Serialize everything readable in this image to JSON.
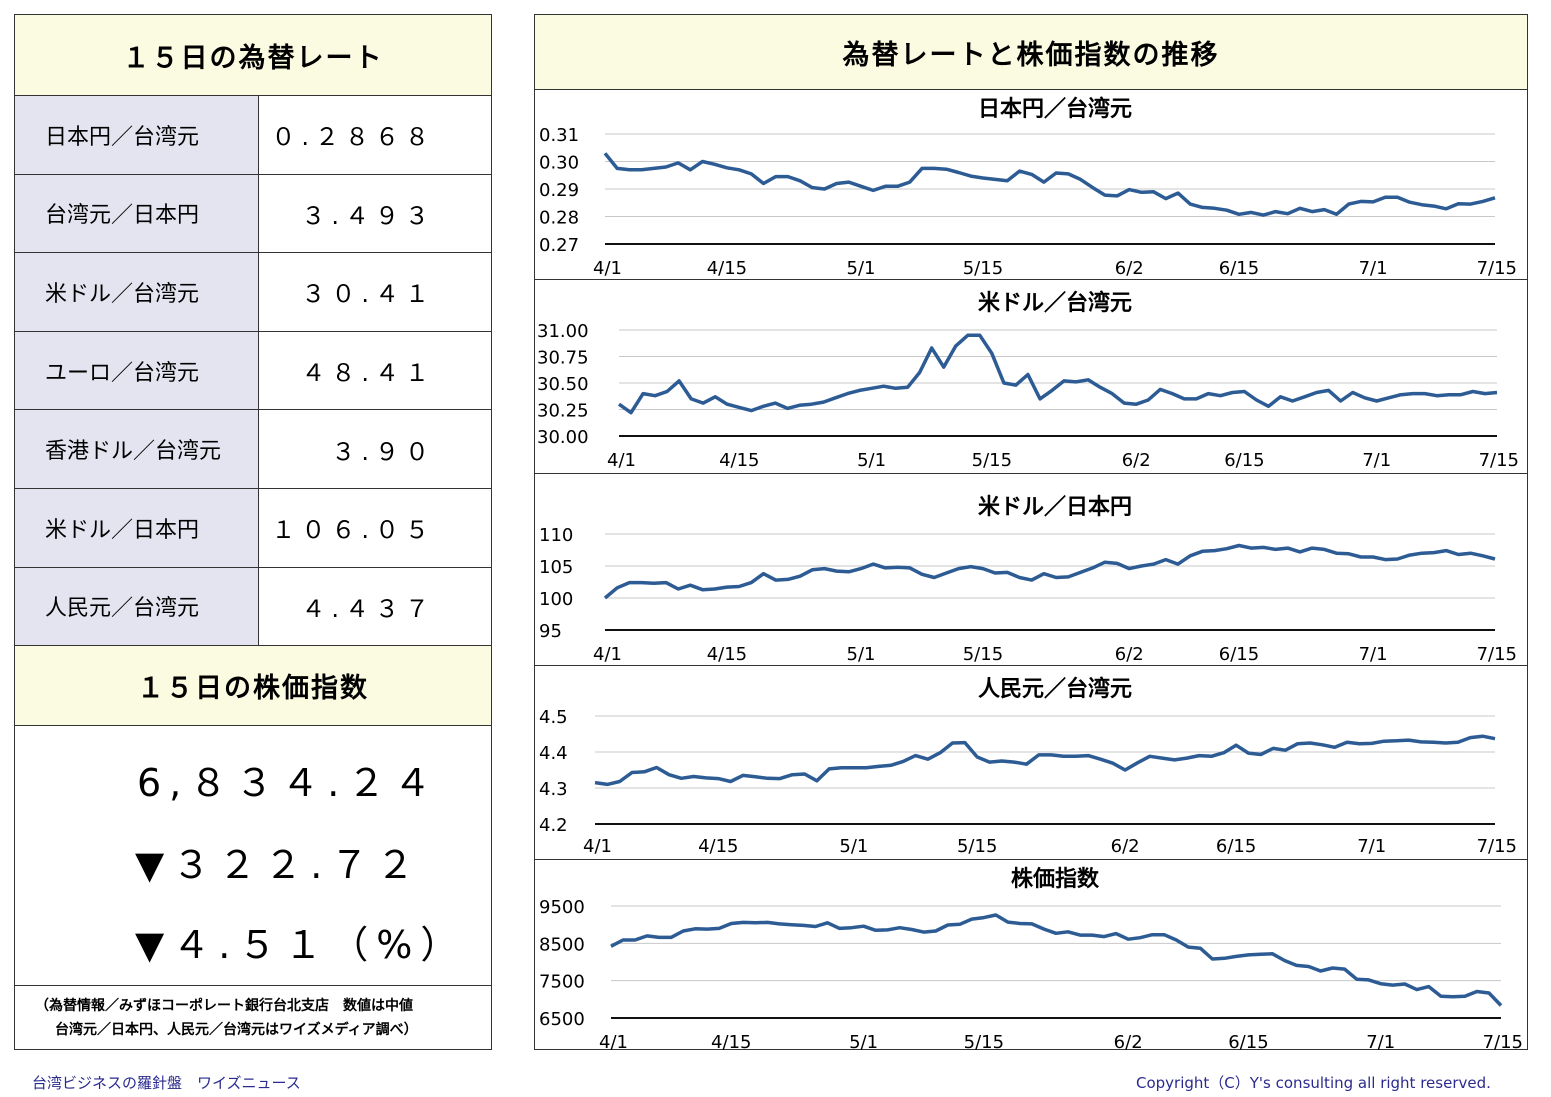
{
  "left": {
    "rates_title": "１５日の為替レート",
    "rates": [
      {
        "label": "日本円／台湾元",
        "value": "０.２８６８"
      },
      {
        "label": "台湾元／日本円",
        "value": "３.４９３"
      },
      {
        "label": "米ドル／台湾元",
        "value": "３０.４１"
      },
      {
        "label": "ユーロ／台湾元",
        "value": "４８.４１"
      },
      {
        "label": "香港ドル／台湾元",
        "value": "３.９０"
      },
      {
        "label": "米ドル／日本円",
        "value": "１０６.０５"
      },
      {
        "label": "人民元／台湾元",
        "value": "４.４３７"
      }
    ],
    "index_title": "１５日の株価指数",
    "index_value": "6,８３４.２４",
    "index_change": "▼３２２.７２",
    "index_change_pct": "▼４.５１（%）",
    "note_line1": "（為替情報／みずほコーポレート銀行台北支店　数値は中値",
    "note_line2": "台湾元／日本円、人民元／台湾元はワイズメディア調べ）"
  },
  "right": {
    "title": "為替レートと株価指数の推移"
  },
  "footer": {
    "left": "台湾ビジネスの羅針盤　ワイズニュース",
    "right": "Copyright（C）Y's consulting all right reserved."
  },
  "colors": {
    "line": "#2d5b94",
    "header_bg": "#fbfbe2",
    "label_bg": "#e4e4f0",
    "footer_text": "#2b2b8f"
  },
  "chart_data": [
    {
      "type": "line",
      "title": "日本円／台湾元",
      "x_ticks": [
        "4/1",
        "4/15",
        "5/1",
        "5/15",
        "6/2",
        "6/15",
        "7/1",
        "7/15"
      ],
      "y_ticks": [
        "0.31",
        "0.30",
        "0.29",
        "0.28",
        "0.27"
      ],
      "ylim": [
        0.27,
        0.31
      ],
      "grid": true,
      "values": [
        0.303,
        0.2975,
        0.297,
        0.297,
        0.2975,
        0.298,
        0.2995,
        0.297,
        0.3,
        0.299,
        0.2977,
        0.297,
        0.2955,
        0.292,
        0.2945,
        0.2945,
        0.293,
        0.2905,
        0.29,
        0.292,
        0.2925,
        0.291,
        0.2895,
        0.291,
        0.291,
        0.2925,
        0.2975,
        0.2975,
        0.2972,
        0.296,
        0.2947,
        0.294,
        0.2935,
        0.293,
        0.2965,
        0.2953,
        0.2925,
        0.2958,
        0.2955,
        0.2935,
        0.2905,
        0.2878,
        0.2875,
        0.2898,
        0.2888,
        0.289,
        0.2865,
        0.2885,
        0.2845,
        0.2833,
        0.283,
        0.2823,
        0.2808,
        0.2815,
        0.2805,
        0.2818,
        0.281,
        0.283,
        0.2818,
        0.2825,
        0.2808,
        0.2845,
        0.2855,
        0.2853,
        0.287,
        0.287,
        0.2852,
        0.2843,
        0.2838,
        0.2828,
        0.2846,
        0.2845,
        0.2855,
        0.2868
      ]
    },
    {
      "type": "line",
      "title": "米ドル／台湾元",
      "x_ticks": [
        "4/1",
        "4/15",
        "5/1",
        "5/15",
        "6/2",
        "6/15",
        "7/1",
        "7/15"
      ],
      "y_ticks": [
        "31.00",
        "30.75",
        "30.50",
        "30.25",
        "30.00"
      ],
      "ylim": [
        30.0,
        31.0
      ],
      "grid": true,
      "values": [
        30.3,
        30.22,
        30.4,
        30.38,
        30.42,
        30.52,
        30.35,
        30.31,
        30.37,
        30.3,
        30.27,
        30.24,
        30.28,
        30.31,
        30.26,
        30.29,
        30.3,
        30.32,
        30.36,
        30.4,
        30.43,
        30.45,
        30.47,
        30.45,
        30.46,
        30.6,
        30.83,
        30.65,
        30.85,
        30.95,
        30.95,
        30.78,
        30.5,
        30.48,
        30.58,
        30.35,
        30.43,
        30.52,
        30.51,
        30.53,
        30.46,
        30.4,
        30.31,
        30.3,
        30.34,
        30.44,
        30.4,
        30.35,
        30.35,
        30.4,
        30.38,
        30.41,
        30.42,
        30.34,
        30.28,
        30.37,
        30.33,
        30.37,
        30.41,
        30.43,
        30.33,
        30.41,
        30.36,
        30.33,
        30.36,
        30.39,
        30.4,
        30.4,
        30.38,
        30.39,
        30.39,
        30.42,
        30.4,
        30.41
      ]
    },
    {
      "type": "line",
      "title": "米ドル／日本円",
      "x_ticks": [
        "4/1",
        "4/15",
        "5/1",
        "5/15",
        "6/2",
        "6/15",
        "7/1",
        "7/15"
      ],
      "y_ticks": [
        "110",
        "105",
        "100",
        "95"
      ],
      "ylim": [
        95,
        110
      ],
      "grid": true,
      "values": [
        100.0,
        101.6,
        102.4,
        102.4,
        102.3,
        102.4,
        101.4,
        102.0,
        101.3,
        101.4,
        101.7,
        101.8,
        102.4,
        103.8,
        102.8,
        102.9,
        103.4,
        104.4,
        104.6,
        104.2,
        104.1,
        104.6,
        105.3,
        104.7,
        104.8,
        104.7,
        103.7,
        103.2,
        103.9,
        104.6,
        104.9,
        104.6,
        103.9,
        104.0,
        103.2,
        102.8,
        103.8,
        103.2,
        103.3,
        104.0,
        104.7,
        105.6,
        105.4,
        104.6,
        105.0,
        105.3,
        106.0,
        105.3,
        106.6,
        107.3,
        107.4,
        107.7,
        108.2,
        107.8,
        107.9,
        107.6,
        107.8,
        107.2,
        107.8,
        107.6,
        107.0,
        106.9,
        106.4,
        106.4,
        106.0,
        106.1,
        106.7,
        107.0,
        107.1,
        107.4,
        106.8,
        107.0,
        106.6,
        106.1
      ]
    },
    {
      "type": "line",
      "title": "人民元／台湾元",
      "x_ticks": [
        "4/1",
        "4/15",
        "5/1",
        "5/15",
        "6/2",
        "6/15",
        "7/1",
        "7/15"
      ],
      "y_ticks": [
        "4.5",
        "4.4",
        "4.3",
        "4.2"
      ],
      "ylim": [
        4.2,
        4.5
      ],
      "grid": true,
      "values": [
        4.315,
        4.31,
        4.318,
        4.343,
        4.345,
        4.357,
        4.337,
        4.327,
        4.332,
        4.328,
        4.326,
        4.318,
        4.335,
        4.331,
        4.327,
        4.326,
        4.337,
        4.339,
        4.32,
        4.353,
        4.356,
        4.356,
        4.356,
        4.36,
        4.363,
        4.374,
        4.39,
        4.38,
        4.398,
        4.425,
        4.426,
        4.386,
        4.372,
        4.375,
        4.372,
        4.366,
        4.392,
        4.392,
        4.388,
        4.388,
        4.39,
        4.38,
        4.369,
        4.35,
        4.37,
        4.388,
        4.383,
        4.378,
        4.383,
        4.39,
        4.388,
        4.398,
        4.419,
        4.397,
        4.393,
        4.41,
        4.405,
        4.423,
        4.425,
        4.42,
        4.413,
        4.427,
        4.423,
        4.424,
        4.43,
        4.431,
        4.433,
        4.428,
        4.427,
        4.425,
        4.427,
        4.44,
        4.444,
        4.437
      ]
    },
    {
      "type": "line",
      "title": "株価指数",
      "x_ticks": [
        "4/1",
        "4/15",
        "5/1",
        "5/15",
        "6/2",
        "6/15",
        "7/1",
        "7/15"
      ],
      "y_ticks": [
        "9500",
        "8500",
        "7500",
        "6500"
      ],
      "ylim": [
        6500,
        9500
      ],
      "grid": true,
      "values": [
        8420,
        8590,
        8590,
        8700,
        8660,
        8660,
        8830,
        8890,
        8880,
        8900,
        9030,
        9060,
        9050,
        9060,
        9020,
        9000,
        8980,
        8950,
        9050,
        8900,
        8920,
        8960,
        8850,
        8860,
        8920,
        8870,
        8800,
        8830,
        8990,
        9010,
        9150,
        9190,
        9260,
        9070,
        9030,
        9020,
        8880,
        8770,
        8810,
        8720,
        8720,
        8680,
        8760,
        8610,
        8650,
        8730,
        8730,
        8590,
        8400,
        8370,
        8080,
        8100,
        8150,
        8190,
        8210,
        8220,
        8040,
        7910,
        7880,
        7760,
        7840,
        7810,
        7540,
        7520,
        7420,
        7380,
        7410,
        7260,
        7340,
        7080,
        7070,
        7080,
        7210,
        7170,
        6834
      ]
    }
  ]
}
